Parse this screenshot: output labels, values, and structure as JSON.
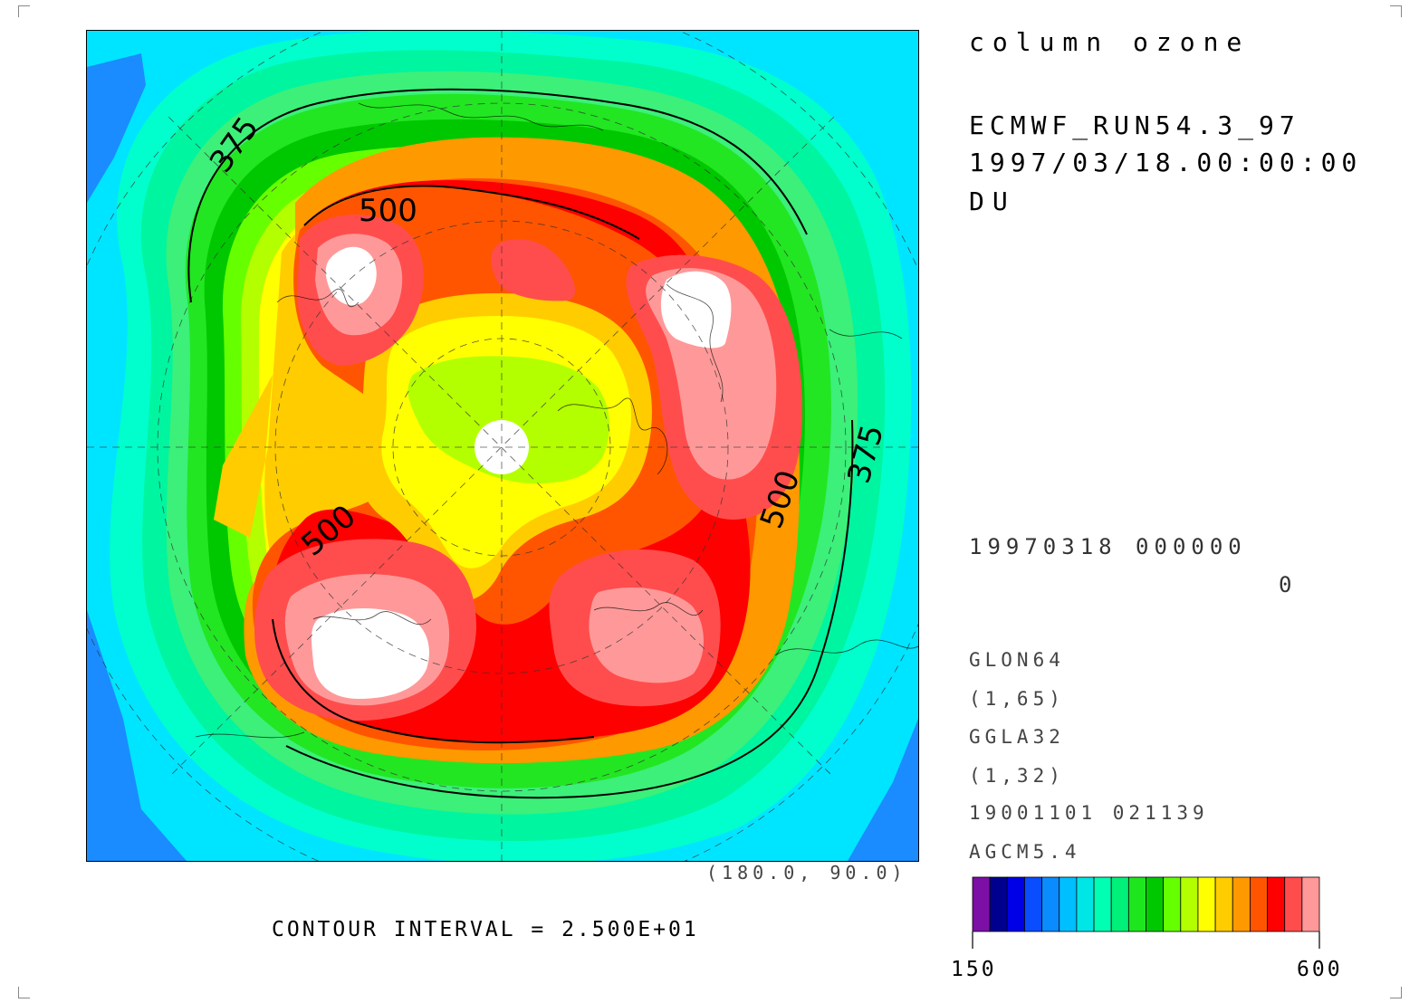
{
  "header": {
    "field_title": "column ozone",
    "run_name": "ECMWF_RUN54.3_97",
    "datetime": "1997/03/18.00:00:00",
    "units": "DU"
  },
  "info_block": {
    "date_code": "19970318 000000",
    "level_value": "0",
    "lon_grid": "GLON64",
    "lon_range": "(1,65)",
    "lat_grid": "GGLA32",
    "lat_range": "(1,32)",
    "created": "19001101 021139",
    "model": "AGCM5.4"
  },
  "map": {
    "corner_label": "(180.0, 90.0)",
    "contour_interval_text": "CONTOUR INTERVAL = 2.500E+01",
    "contour_labels": [
      "375",
      "375",
      "500",
      "500",
      "500"
    ]
  },
  "colorbar": {
    "min_label": "150",
    "max_label": "600",
    "colors": [
      "#7b0fa6",
      "#00008f",
      "#0000e6",
      "#0a4dff",
      "#0a8cff",
      "#00bfff",
      "#00e5e5",
      "#00ffb3",
      "#00f07a",
      "#1ee61e",
      "#00c800",
      "#66ff00",
      "#b3ff00",
      "#ffff00",
      "#ffcc00",
      "#ff9900",
      "#ff5500",
      "#ff0000",
      "#ff4d4d",
      "#ff9999"
    ]
  }
}
